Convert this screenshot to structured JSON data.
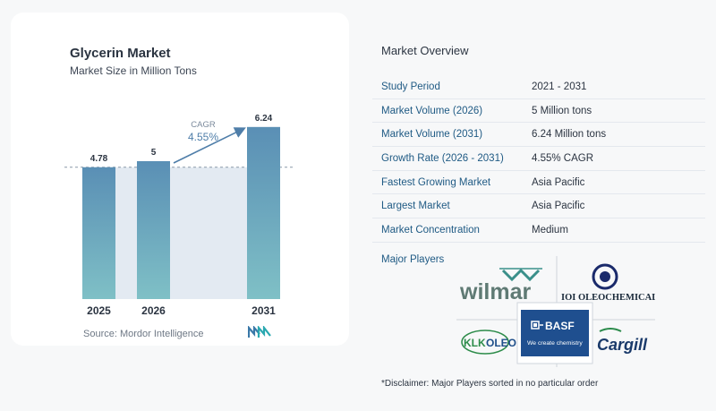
{
  "chart": {
    "title": "Glycerin Market",
    "subtitle": "Market Size in Million Tons",
    "source": "Source: Mordor Intelligence",
    "cagr_label": "CAGR",
    "cagr_value": "4.55%"
  },
  "chart_data": {
    "type": "bar",
    "title": "Glycerin Market",
    "subtitle": "Market Size in Million Tons",
    "categories": [
      "2025",
      "2026",
      "2031"
    ],
    "values": [
      4.78,
      5,
      6.24
    ],
    "value_labels": [
      "4.78",
      "5",
      "6.24"
    ],
    "xlabel": "",
    "ylabel": "",
    "grid": false,
    "legend": "none",
    "colors": {
      "bar_top": "#5a8fb5",
      "bar_bottom": "#7fc0c6",
      "band": "#e3eaf2",
      "arrow": "#4f7ea9"
    }
  },
  "overview": {
    "title": "Market Overview",
    "rows": [
      {
        "label": "Study Period",
        "value": "2021 - 2031"
      },
      {
        "label": "Market Volume (2026)",
        "value": "5 Million tons"
      },
      {
        "label": "Market Volume (2031)",
        "value": "6.24 Million tons"
      },
      {
        "label": "Growth Rate (2026 - 2031)",
        "value": "4.55% CAGR"
      },
      {
        "label": "Fastest Growing Market",
        "value": "Asia Pacific"
      },
      {
        "label": "Largest Market",
        "value": "Asia Pacific"
      },
      {
        "label": "Market Concentration",
        "value": "Medium"
      }
    ],
    "players_label": "Major Players",
    "players": {
      "wilmar": "wilmar",
      "ioi": "IOI OLEOCHEMICAL",
      "klk_a": "KLK",
      "klk_b": "OLEO",
      "basf": "BASF",
      "basf_tagline": "We create chemistry",
      "cargill": "Cargill"
    },
    "disclaimer": "*Disclaimer: Major Players sorted in no particular order"
  }
}
